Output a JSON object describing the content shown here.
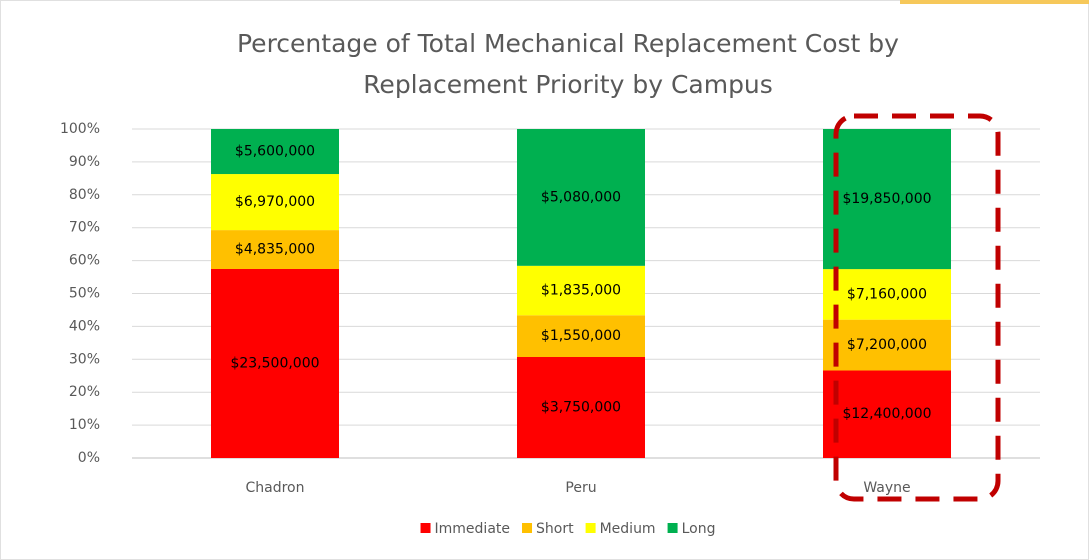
{
  "chart_data": {
    "type": "bar",
    "stacked": "percent",
    "title": [
      "Percentage of Total Mechanical Replacement Cost by",
      "Replacement Priority by Campus"
    ],
    "categories": [
      "Chadron",
      "Peru",
      "Wayne"
    ],
    "series": [
      {
        "name": "Immediate",
        "color": "#ff0000",
        "values": [
          23500000,
          3750000,
          12400000
        ],
        "value_labels": [
          "$23,500,000",
          "$3,750,000",
          "$12,400,000"
        ]
      },
      {
        "name": "Short",
        "color": "#ffc000",
        "values": [
          4835000,
          1550000,
          7200000
        ],
        "value_labels": [
          "$4,835,000",
          "$1,550,000",
          "$7,200,000"
        ]
      },
      {
        "name": "Medium",
        "color": "#ffff00",
        "values": [
          6970000,
          1835000,
          7160000
        ],
        "value_labels": [
          "$6,970,000",
          "$1,835,000",
          "$7,160,000"
        ]
      },
      {
        "name": "Long",
        "color": "#00b050",
        "values": [
          5600000,
          5080000,
          19850000
        ],
        "value_labels": [
          "$5,600,000",
          "$5,080,000",
          "$19,850,000"
        ]
      }
    ],
    "ylim": [
      0,
      100
    ],
    "yticks": [
      {
        "value": 0,
        "label": "0%"
      },
      {
        "value": 10,
        "label": "10%"
      },
      {
        "value": 20,
        "label": "20%"
      },
      {
        "value": 30,
        "label": "30%"
      },
      {
        "value": 40,
        "label": "40%"
      },
      {
        "value": 50,
        "label": "50%"
      },
      {
        "value": 60,
        "label": "60%"
      },
      {
        "value": 70,
        "label": "70%"
      },
      {
        "value": 80,
        "label": "80%"
      },
      {
        "value": 90,
        "label": "90%"
      },
      {
        "value": 100,
        "label": "100%"
      }
    ],
    "grid": true,
    "legend": "bottom"
  }
}
